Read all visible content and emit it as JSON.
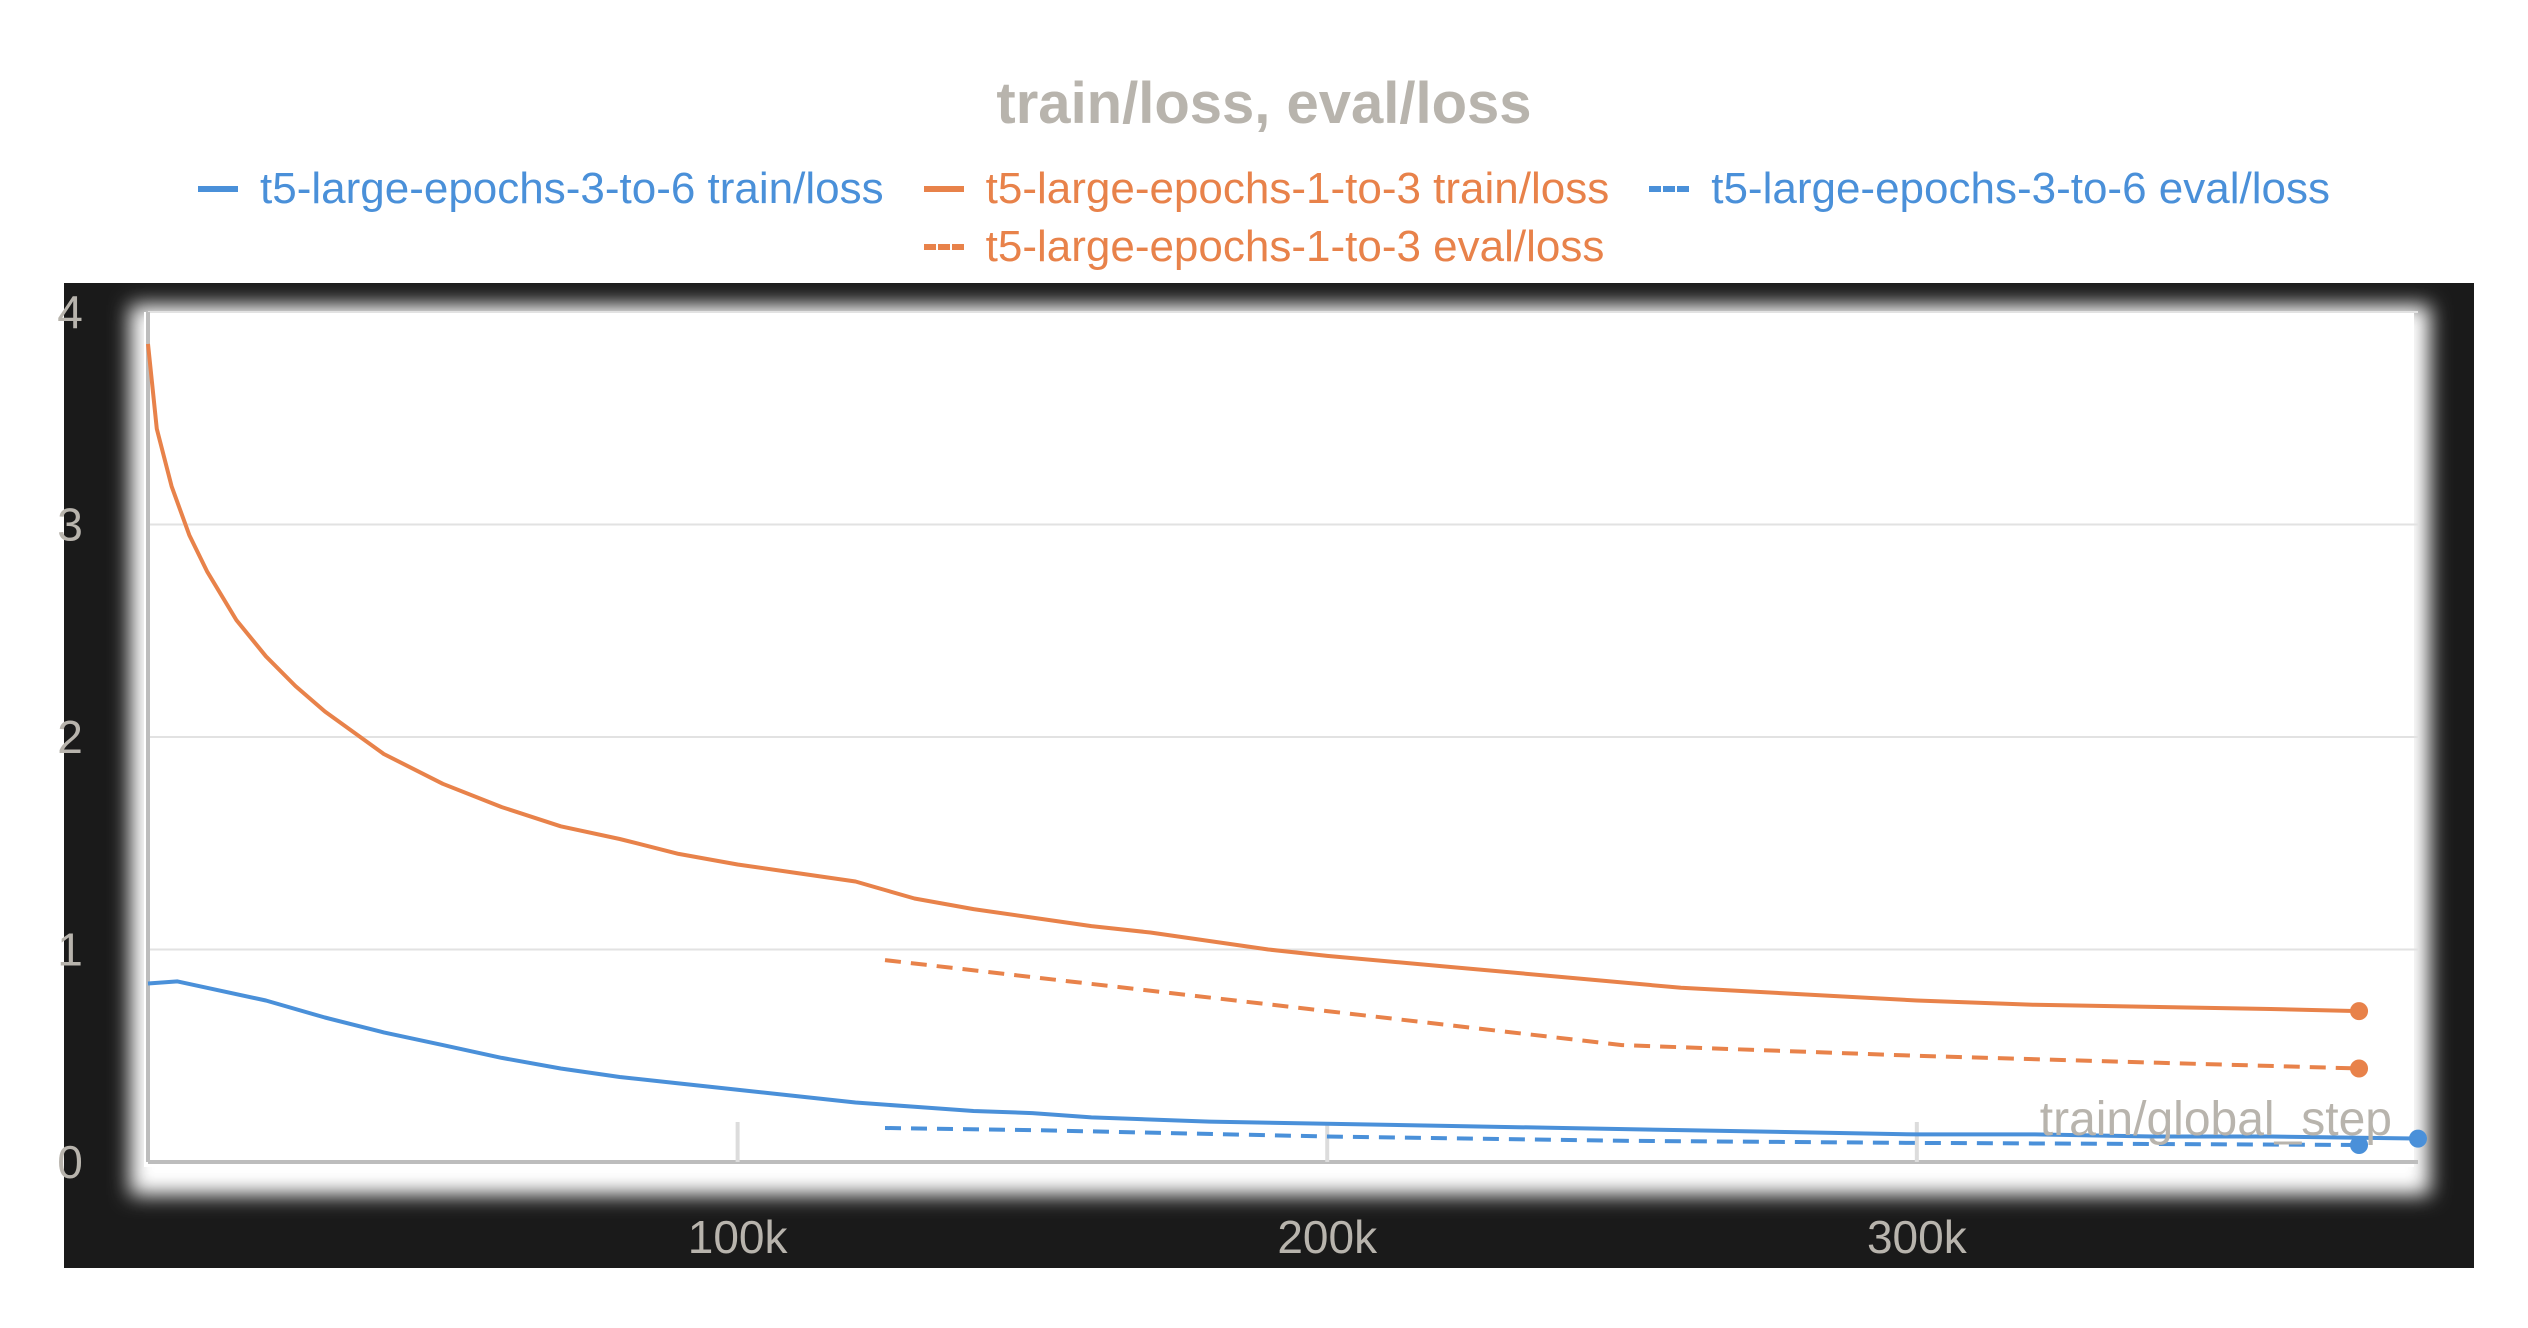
{
  "chart_data": {
    "type": "line",
    "title": "train/loss, eval/loss",
    "xlabel": "train/global_step",
    "ylabel": "",
    "xlim": [
      0,
      385000
    ],
    "ylim": [
      0,
      4
    ],
    "x_ticks": [
      {
        "value": 100000,
        "label": "100k"
      },
      {
        "value": 200000,
        "label": "200k"
      },
      {
        "value": 300000,
        "label": "300k"
      }
    ],
    "y_ticks": [
      {
        "value": 0,
        "label": "0"
      },
      {
        "value": 1,
        "label": "1"
      },
      {
        "value": 2,
        "label": "2"
      },
      {
        "value": 3,
        "label": "3"
      },
      {
        "value": 4,
        "label": "4"
      }
    ],
    "grid": true,
    "legend_position": "top",
    "series": [
      {
        "name": "t5-large-epochs-3-to-6 train/loss",
        "color": "#4a90d9",
        "style": "solid",
        "end_marker": true,
        "x": [
          0,
          5000,
          10000,
          20000,
          30000,
          40000,
          50000,
          60000,
          70000,
          80000,
          90000,
          100000,
          110000,
          120000,
          130000,
          140000,
          150000,
          160000,
          180000,
          200000,
          220000,
          240000,
          260000,
          280000,
          300000,
          320000,
          340000,
          360000,
          385000
        ],
        "y": [
          0.84,
          0.85,
          0.82,
          0.76,
          0.68,
          0.61,
          0.55,
          0.49,
          0.44,
          0.4,
          0.37,
          0.34,
          0.31,
          0.28,
          0.26,
          0.24,
          0.23,
          0.21,
          0.19,
          0.18,
          0.17,
          0.16,
          0.15,
          0.14,
          0.13,
          0.13,
          0.12,
          0.12,
          0.11
        ]
      },
      {
        "name": "t5-large-epochs-1-to-3 train/loss",
        "color": "#e8824a",
        "style": "solid",
        "end_marker": true,
        "x": [
          0,
          1500,
          4000,
          7000,
          10000,
          15000,
          20000,
          25000,
          30000,
          40000,
          50000,
          60000,
          70000,
          80000,
          90000,
          100000,
          110000,
          120000,
          125000,
          130000,
          140000,
          150000,
          160000,
          170000,
          180000,
          190000,
          200000,
          220000,
          240000,
          260000,
          280000,
          300000,
          320000,
          340000,
          360000,
          375000
        ],
        "y": [
          3.85,
          3.45,
          3.18,
          2.95,
          2.78,
          2.55,
          2.38,
          2.24,
          2.12,
          1.92,
          1.78,
          1.67,
          1.58,
          1.52,
          1.45,
          1.4,
          1.36,
          1.32,
          1.28,
          1.24,
          1.19,
          1.15,
          1.11,
          1.08,
          1.04,
          1.0,
          0.97,
          0.92,
          0.87,
          0.82,
          0.79,
          0.76,
          0.74,
          0.73,
          0.72,
          0.71
        ]
      },
      {
        "name": "t5-large-epochs-3-to-6 eval/loss",
        "color": "#4a90d9",
        "style": "dashed",
        "end_marker": true,
        "x": [
          125000,
          150000,
          200000,
          250000,
          300000,
          375000
        ],
        "y": [
          0.16,
          0.15,
          0.12,
          0.1,
          0.09,
          0.08
        ]
      },
      {
        "name": "t5-large-epochs-1-to-3 eval/loss",
        "color": "#e8824a",
        "style": "dashed",
        "end_marker": true,
        "x": [
          125000,
          150000,
          200000,
          250000,
          300000,
          375000
        ],
        "y": [
          0.95,
          0.87,
          0.71,
          0.55,
          0.5,
          0.44
        ]
      }
    ]
  }
}
